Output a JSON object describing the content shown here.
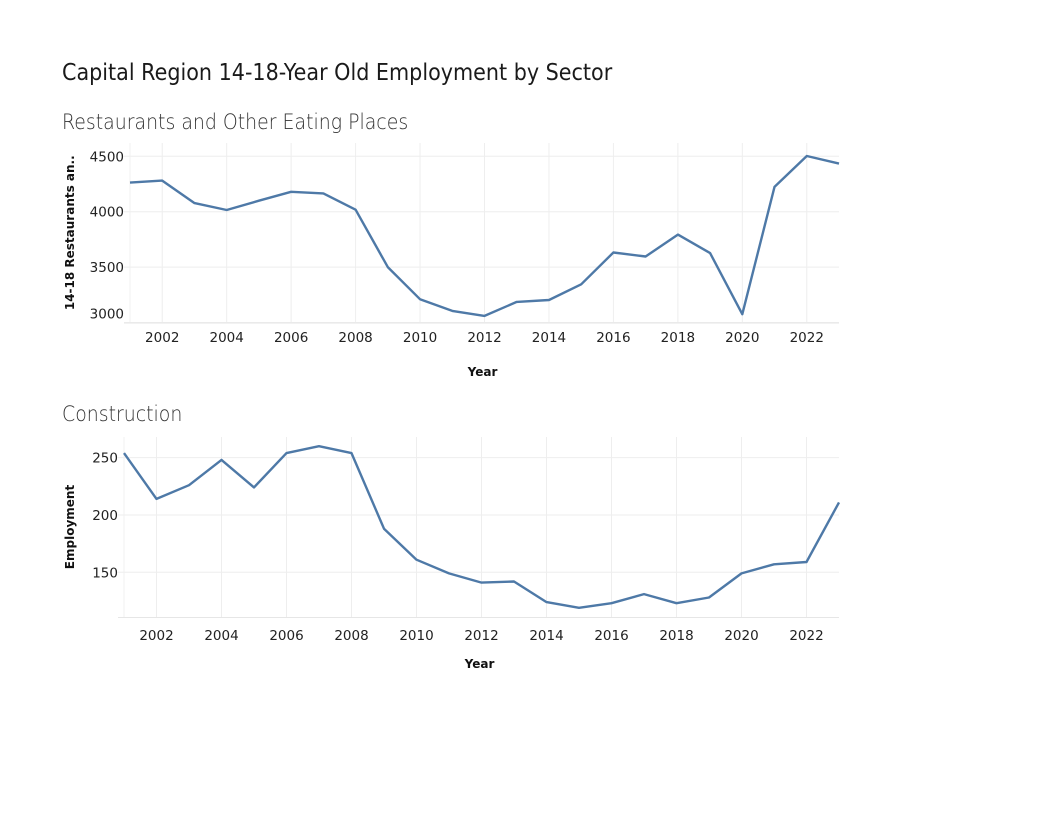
{
  "title": "Capital Region 14-18-Year Old Employment by Sector",
  "colors": {
    "line": "#4e79a7",
    "grid": "#eeeeee"
  },
  "chart_data": [
    {
      "type": "line",
      "subtitle": "Restaurants and Other Eating Places",
      "xlabel": "Year",
      "ylabel": "14-18 Restaurants an..",
      "x": [
        2001,
        2002,
        2003,
        2004,
        2005,
        2006,
        2007,
        2008,
        2009,
        2010,
        2011,
        2012,
        2013,
        2014,
        2015,
        2016,
        2017,
        2018,
        2019,
        2020,
        2021,
        2022,
        2023
      ],
      "values": [
        4263,
        4281,
        4078,
        4015,
        4099,
        4180,
        4165,
        4018,
        3500,
        3210,
        3105,
        3060,
        3186,
        3203,
        3345,
        3632,
        3596,
        3793,
        3626,
        3075,
        4224,
        4503,
        4434
      ],
      "xlim": [
        2001,
        2023
      ],
      "ylim": [
        3000,
        4620
      ],
      "xticks": [
        "2002",
        "2004",
        "2006",
        "2008",
        "2010",
        "2012",
        "2014",
        "2016",
        "2018",
        "2020",
        "2022"
      ],
      "yticks": [
        "3000",
        "3500",
        "4000",
        "4500"
      ],
      "grid": true
    },
    {
      "type": "line",
      "subtitle": "Construction",
      "xlabel": "Year",
      "ylabel": "Employment",
      "x": [
        2001,
        2002,
        2003,
        2004,
        2005,
        2006,
        2007,
        2008,
        2009,
        2010,
        2011,
        2012,
        2013,
        2014,
        2015,
        2016,
        2017,
        2018,
        2019,
        2020,
        2021,
        2022,
        2023
      ],
      "values": [
        254,
        214,
        226,
        248,
        224,
        254,
        260,
        254,
        188,
        161,
        149,
        141,
        142,
        124,
        119,
        123,
        131,
        123,
        128,
        149,
        157,
        159,
        211
      ],
      "xlim": [
        2001,
        2023
      ],
      "ylim": [
        111,
        268
      ],
      "xticks": [
        "2002",
        "2004",
        "2006",
        "2008",
        "2010",
        "2012",
        "2014",
        "2016",
        "2018",
        "2020",
        "2022"
      ],
      "yticks": [
        "150",
        "200",
        "250"
      ],
      "grid": true
    }
  ]
}
